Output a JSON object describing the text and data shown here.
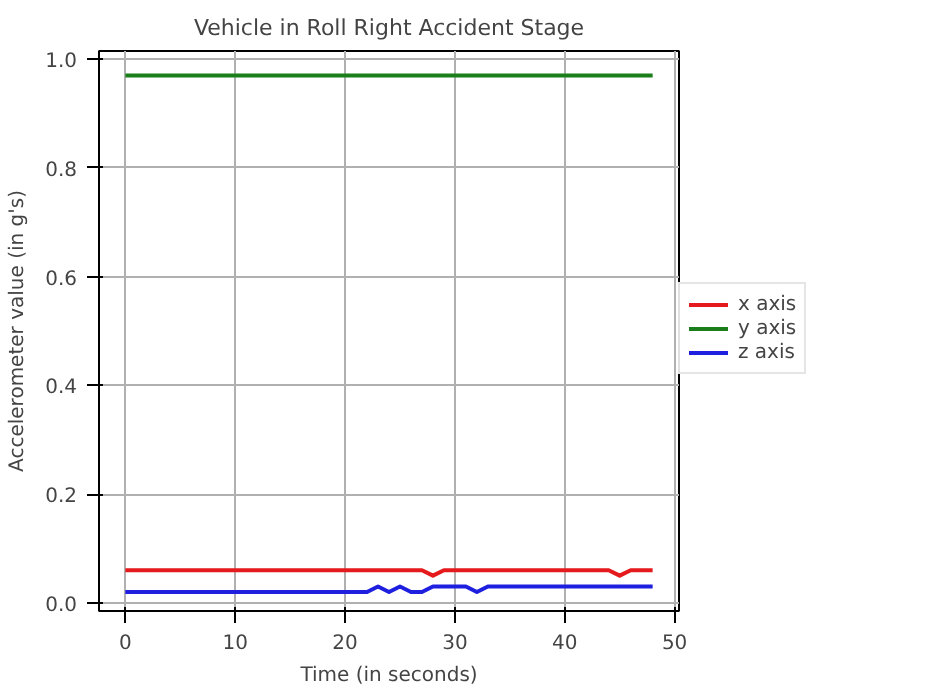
{
  "chart_data": {
    "type": "line",
    "title": "Vehicle in Roll Right Accident Stage",
    "xlabel": "Time (in seconds)",
    "ylabel": "Accelerometer value (in g's)",
    "xlim": [
      -2.4,
      50.4
    ],
    "ylim": [
      -0.015,
      1.015
    ],
    "xticks": [
      0,
      10,
      20,
      30,
      40,
      50
    ],
    "yticks": [
      {
        "value": 0,
        "label": "0.0"
      },
      0.2,
      0.4,
      0.6,
      0.8,
      {
        "value": 1,
        "label": "1.0"
      }
    ],
    "grid": true,
    "legend": "right",
    "series": [
      {
        "name": "x axis",
        "color": "#e41a1c",
        "x": [
          0,
          27,
          28,
          29,
          44,
          45,
          46,
          48
        ],
        "values": [
          0.06,
          0.06,
          0.05,
          0.06,
          0.06,
          0.05,
          0.06,
          0.06
        ]
      },
      {
        "name": "y axis",
        "color": "#1a7f1a",
        "x": [
          0,
          48
        ],
        "values": [
          0.97,
          0.97
        ]
      },
      {
        "name": "z axis",
        "color": "#1f1fe0",
        "x": [
          0,
          22,
          23,
          24,
          25,
          26,
          27,
          28,
          31,
          32,
          33,
          48
        ],
        "values": [
          0.02,
          0.02,
          0.03,
          0.02,
          0.03,
          0.02,
          0.02,
          0.03,
          0.03,
          0.02,
          0.03,
          0.03
        ]
      }
    ]
  }
}
